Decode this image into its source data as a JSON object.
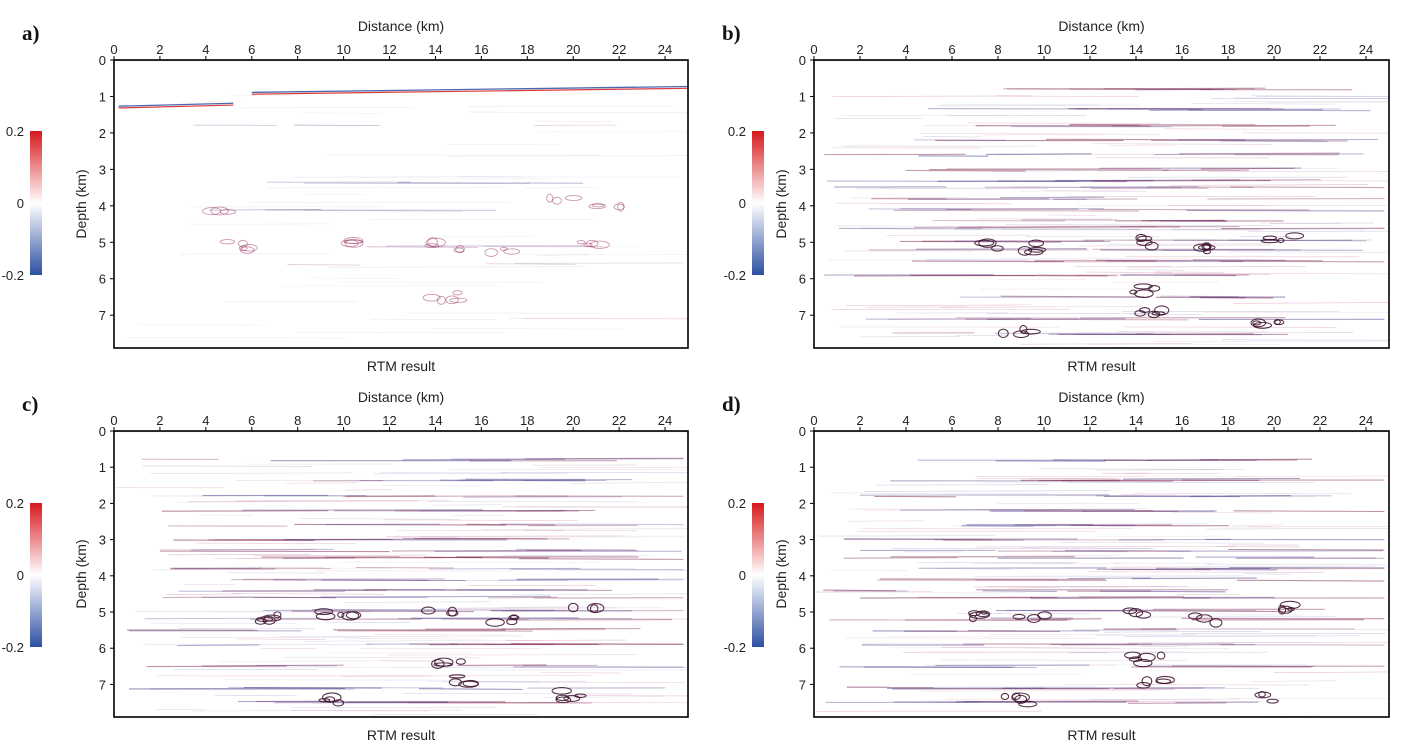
{
  "colors": {
    "positive": "#d7191c",
    "negative": "#2c4fa3",
    "midpoint": "#ffffff",
    "reflector": "#7a1f4a",
    "frame": "#000000"
  },
  "shared": {
    "x_axis_title": "Distance (km)",
    "y_axis_title": "Depth (km)",
    "caption": "RTM result",
    "x_ticks": [
      "0",
      "2",
      "4",
      "6",
      "8",
      "10",
      "12",
      "14",
      "16",
      "18",
      "20",
      "22",
      "24"
    ],
    "y_ticks": [
      "0",
      "1",
      "2",
      "3",
      "4",
      "5",
      "6",
      "7"
    ],
    "colorbar_ticks": [
      "0.2",
      "0",
      "-0.2"
    ]
  },
  "chart_data": [
    {
      "type": "heatmap",
      "panel": "a)",
      "xlabel": "Distance (km)",
      "ylabel": "Depth (km)",
      "caption": "RTM result",
      "xlim": [
        0,
        25
      ],
      "ylim": [
        7.9,
        0
      ],
      "colorbar_range": [
        -0.2,
        0.2
      ],
      "colormap": "blue-white-red",
      "strong_reflectors": [
        {
          "x0": 6,
          "x1": 25,
          "depth_start": 0.92,
          "depth_end": 0.76,
          "amplitude": 0.2
        },
        {
          "x0": 0.2,
          "x1": 5.2,
          "depth_start": 1.3,
          "depth_end": 1.22,
          "amplitude": 0.15
        }
      ],
      "layers_km": [
        1.8,
        3.35,
        4.1,
        5.1,
        5.6
      ],
      "patches": [
        {
          "x": 5.5,
          "depth": 5.1
        },
        {
          "x": 10,
          "depth": 5.05
        },
        {
          "x": 14.5,
          "depth": 5.1
        },
        {
          "x": 17,
          "depth": 5.25
        },
        {
          "x": 20.5,
          "depth": 5.0
        },
        {
          "x": 19.5,
          "depth": 3.9
        },
        {
          "x": 21.5,
          "depth": 3.95
        },
        {
          "x": 4.6,
          "depth": 4.05
        },
        {
          "x": 14.5,
          "depth": 6.5
        }
      ]
    },
    {
      "type": "heatmap",
      "panel": "b)",
      "xlabel": "Distance (km)",
      "ylabel": "Depth (km)",
      "caption": "RTM result",
      "xlim": [
        0,
        25
      ],
      "ylim": [
        7.9,
        0
      ],
      "colorbar_range": [
        -0.2,
        0.2
      ],
      "colormap": "blue-white-red",
      "strong_reflectors": [],
      "layers_km": [
        0.8,
        1.35,
        1.8,
        2.2,
        2.6,
        3.0,
        3.3,
        3.5,
        3.8,
        4.1,
        4.4,
        4.6,
        4.95,
        5.2,
        5.5,
        5.9,
        6.5,
        7.1,
        7.5
      ],
      "patches": [
        {
          "x": 7.5,
          "depth": 5.1
        },
        {
          "x": 9.5,
          "depth": 5.15
        },
        {
          "x": 14,
          "depth": 5.0
        },
        {
          "x": 16.5,
          "depth": 5.2
        },
        {
          "x": 20.3,
          "depth": 4.9
        },
        {
          "x": 14.3,
          "depth": 6.3
        },
        {
          "x": 14.6,
          "depth": 6.9
        },
        {
          "x": 8.8,
          "depth": 7.4
        },
        {
          "x": 19.8,
          "depth": 7.3
        }
      ]
    },
    {
      "type": "heatmap",
      "panel": "c)",
      "xlabel": "Distance (km)",
      "ylabel": "Depth (km)",
      "caption": "RTM result",
      "xlim": [
        0,
        25
      ],
      "ylim": [
        7.9,
        0
      ],
      "colorbar_range": [
        -0.2,
        0.2
      ],
      "colormap": "blue-white-red",
      "strong_reflectors": [],
      "layers_km": [
        0.8,
        1.35,
        1.8,
        2.2,
        2.6,
        3.0,
        3.3,
        3.5,
        3.8,
        4.1,
        4.4,
        4.6,
        4.95,
        5.2,
        5.5,
        5.9,
        6.5,
        7.1,
        7.5
      ],
      "patches": [
        {
          "x": 6.8,
          "depth": 5.15
        },
        {
          "x": 9.8,
          "depth": 5.1
        },
        {
          "x": 14.2,
          "depth": 4.95
        },
        {
          "x": 17.2,
          "depth": 5.2
        },
        {
          "x": 20.3,
          "depth": 4.9
        },
        {
          "x": 14.5,
          "depth": 6.4
        },
        {
          "x": 15,
          "depth": 6.9
        },
        {
          "x": 9.2,
          "depth": 7.4
        },
        {
          "x": 20,
          "depth": 7.3
        }
      ]
    },
    {
      "type": "heatmap",
      "panel": "d)",
      "xlabel": "Distance (km)",
      "ylabel": "Depth (km)",
      "caption": "RTM result",
      "xlim": [
        0,
        25
      ],
      "ylim": [
        7.9,
        0
      ],
      "colorbar_range": [
        -0.2,
        0.2
      ],
      "colormap": "blue-white-red",
      "strong_reflectors": [],
      "layers_km": [
        0.8,
        1.35,
        1.8,
        2.2,
        2.6,
        3.0,
        3.3,
        3.5,
        3.8,
        4.1,
        4.4,
        4.6,
        4.95,
        5.2,
        5.5,
        5.9,
        6.5,
        7.1,
        7.5
      ],
      "patches": [
        {
          "x": 7.2,
          "depth": 5.1
        },
        {
          "x": 9.6,
          "depth": 5.15
        },
        {
          "x": 14.1,
          "depth": 5.0
        },
        {
          "x": 16.8,
          "depth": 5.2
        },
        {
          "x": 20.4,
          "depth": 4.9
        },
        {
          "x": 14.4,
          "depth": 6.3
        },
        {
          "x": 14.7,
          "depth": 6.9
        },
        {
          "x": 9,
          "depth": 7.45
        },
        {
          "x": 19.9,
          "depth": 7.35
        }
      ]
    }
  ]
}
